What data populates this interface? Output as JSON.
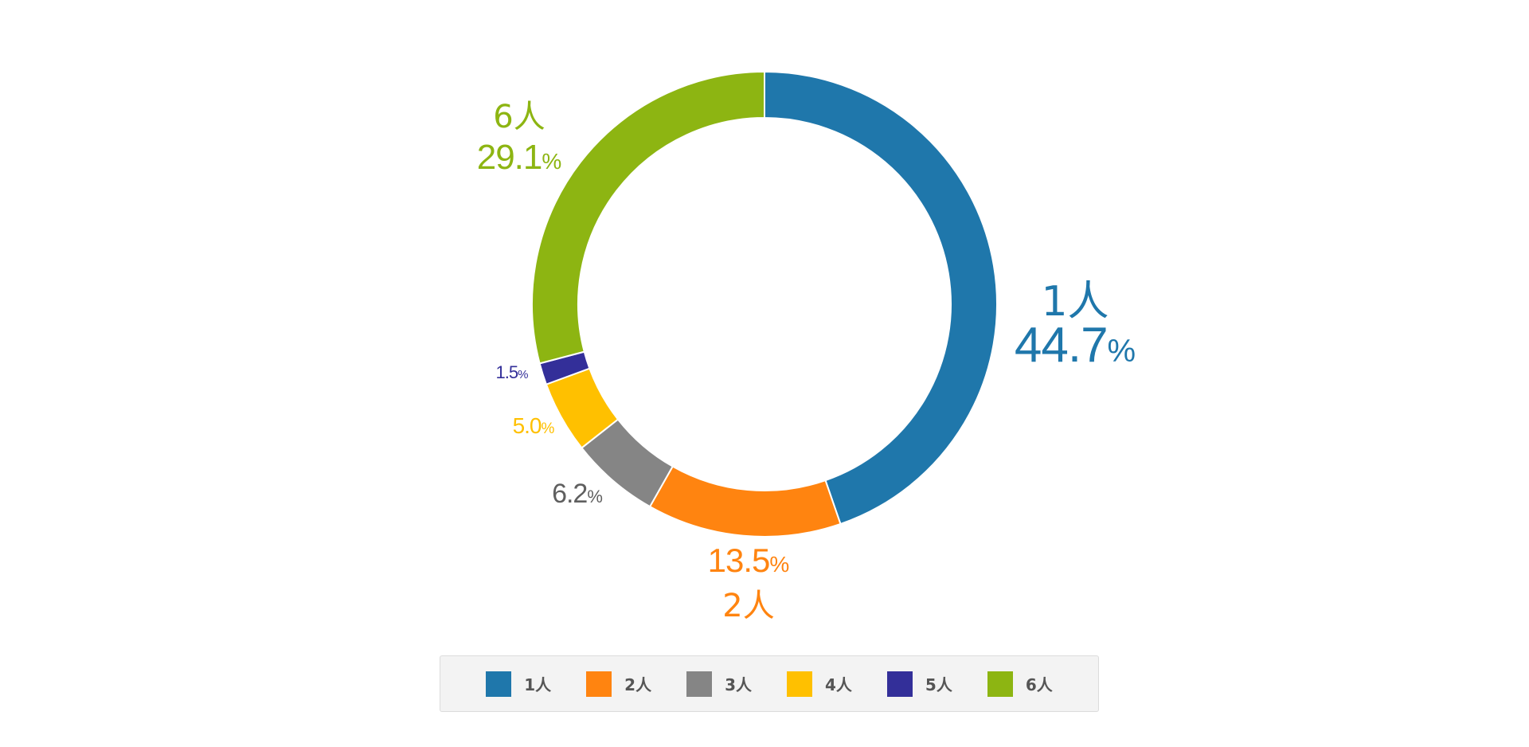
{
  "chart_data": {
    "type": "pie",
    "variant": "donut",
    "categories": [
      "1人",
      "2人",
      "3人",
      "4人",
      "5人",
      "6人"
    ],
    "values": [
      44.7,
      13.5,
      6.2,
      5.0,
      1.5,
      29.1
    ],
    "colors": [
      "#1f77ab",
      "#ff8410",
      "#858585",
      "#ffc000",
      "#332f99",
      "#8db512"
    ],
    "value_suffix": "%",
    "slice_labels": [
      {
        "category": "1人",
        "value": "44.7",
        "unit": "%",
        "show_category": true
      },
      {
        "category": "2人",
        "value": "13.5",
        "unit": "%",
        "show_category": true
      },
      {
        "category": "3人",
        "value": "6.2",
        "unit": "%",
        "show_category": false
      },
      {
        "category": "4人",
        "value": "5.0",
        "unit": "%",
        "show_category": false
      },
      {
        "category": "5人",
        "value": "1.5",
        "unit": "%",
        "show_category": false
      },
      {
        "category": "6人",
        "value": "29.1",
        "unit": "%",
        "show_category": true
      }
    ],
    "legend": {
      "position": "bottom",
      "items": [
        {
          "label": "1人",
          "color": "#1f77ab"
        },
        {
          "label": "2人",
          "color": "#ff8410"
        },
        {
          "label": "3人",
          "color": "#858585"
        },
        {
          "label": "4人",
          "color": "#ffc000"
        },
        {
          "label": "5人",
          "color": "#332f99"
        },
        {
          "label": "6人",
          "color": "#8db512"
        }
      ]
    },
    "title": "",
    "start_angle": "top",
    "direction": "clockwise"
  }
}
